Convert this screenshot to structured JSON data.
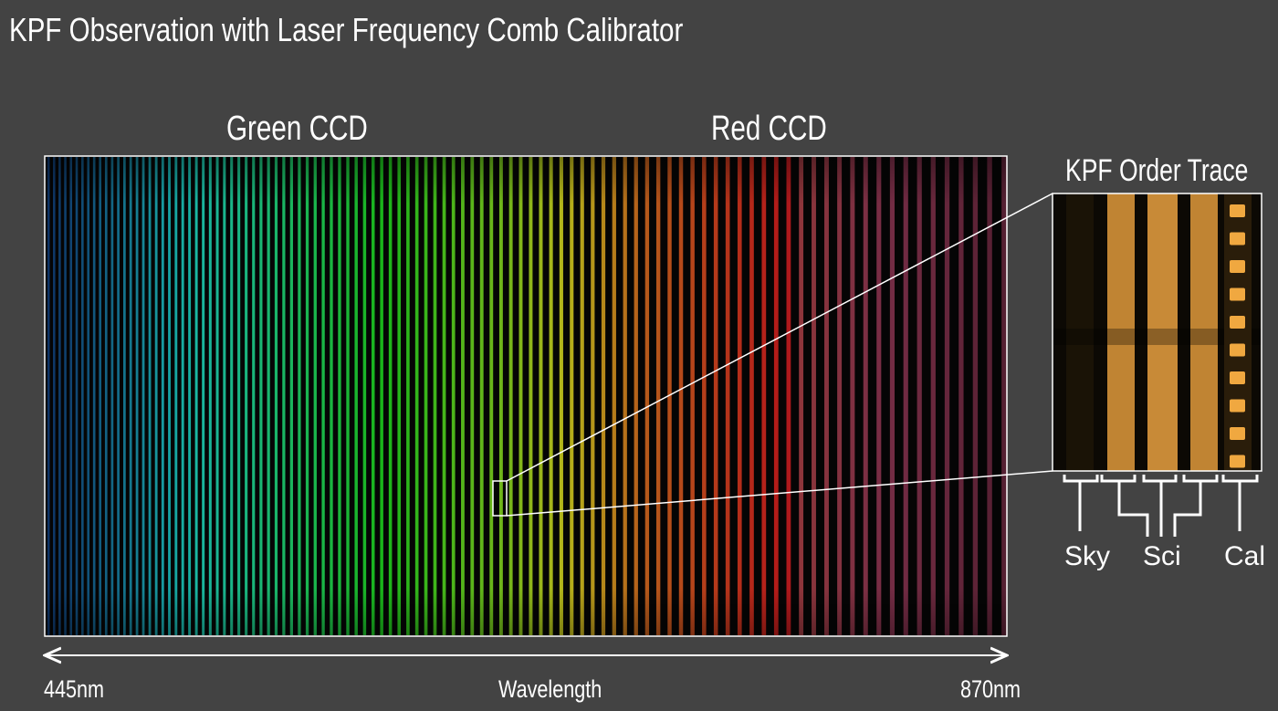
{
  "title": "KPF Observation with Laser Frequency Comb Calibrator",
  "ccd_labels": {
    "green": "Green CCD",
    "red": "Red CCD"
  },
  "inset": {
    "title": "KPF Order Trace",
    "fiber_labels": {
      "sky": "Sky",
      "sci": "Sci",
      "cal": "Cal"
    },
    "comb_dot_count": 10,
    "trace_color": "#d9963a"
  },
  "axis": {
    "label": "Wavelength",
    "min_label": "445nm",
    "max_label": "870nm"
  },
  "colors": {
    "background": "#434343",
    "frame": "#ffffff"
  }
}
